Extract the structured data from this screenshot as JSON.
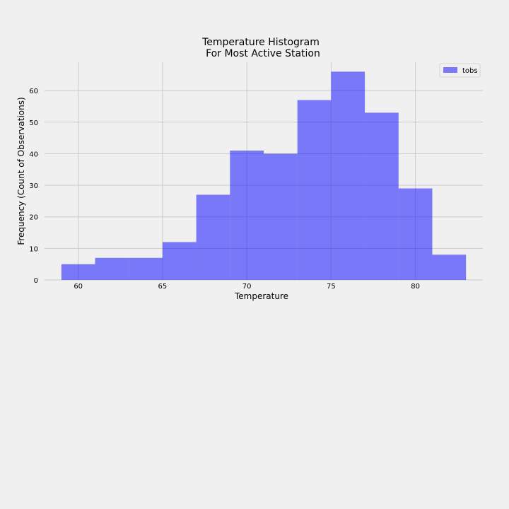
{
  "chart_data": {
    "type": "bar",
    "title_lines": [
      "Temperature Histogram",
      "For Most Active Station"
    ],
    "xlabel": "Temperature",
    "ylabel": "Frequency (Count of Observations)",
    "xlim": [
      58,
      84
    ],
    "ylim": [
      0,
      69
    ],
    "xticks": [
      60,
      65,
      70,
      75,
      80
    ],
    "yticks": [
      0,
      10,
      20,
      30,
      40,
      50,
      60
    ],
    "grid": true,
    "legend_position": "top-right",
    "series": [
      {
        "name": "tobs",
        "color": "#0000ff",
        "opacity": 0.5,
        "bins": [
          {
            "start": 59,
            "end": 61,
            "value": 5
          },
          {
            "start": 61,
            "end": 63,
            "value": 7
          },
          {
            "start": 63,
            "end": 65,
            "value": 7
          },
          {
            "start": 65,
            "end": 67,
            "value": 12
          },
          {
            "start": 67,
            "end": 69,
            "value": 27
          },
          {
            "start": 69,
            "end": 71,
            "value": 41
          },
          {
            "start": 71,
            "end": 73,
            "value": 40
          },
          {
            "start": 73,
            "end": 75,
            "value": 57
          },
          {
            "start": 75,
            "end": 77,
            "value": 66
          },
          {
            "start": 77,
            "end": 79,
            "value": 53
          },
          {
            "start": 79,
            "end": 81,
            "value": 29
          },
          {
            "start": 81,
            "end": 83,
            "value": 8
          }
        ]
      }
    ]
  },
  "colors": {
    "background": "#f0f0f0",
    "grid": "#cbcbcb",
    "bar": "#7777f8"
  }
}
